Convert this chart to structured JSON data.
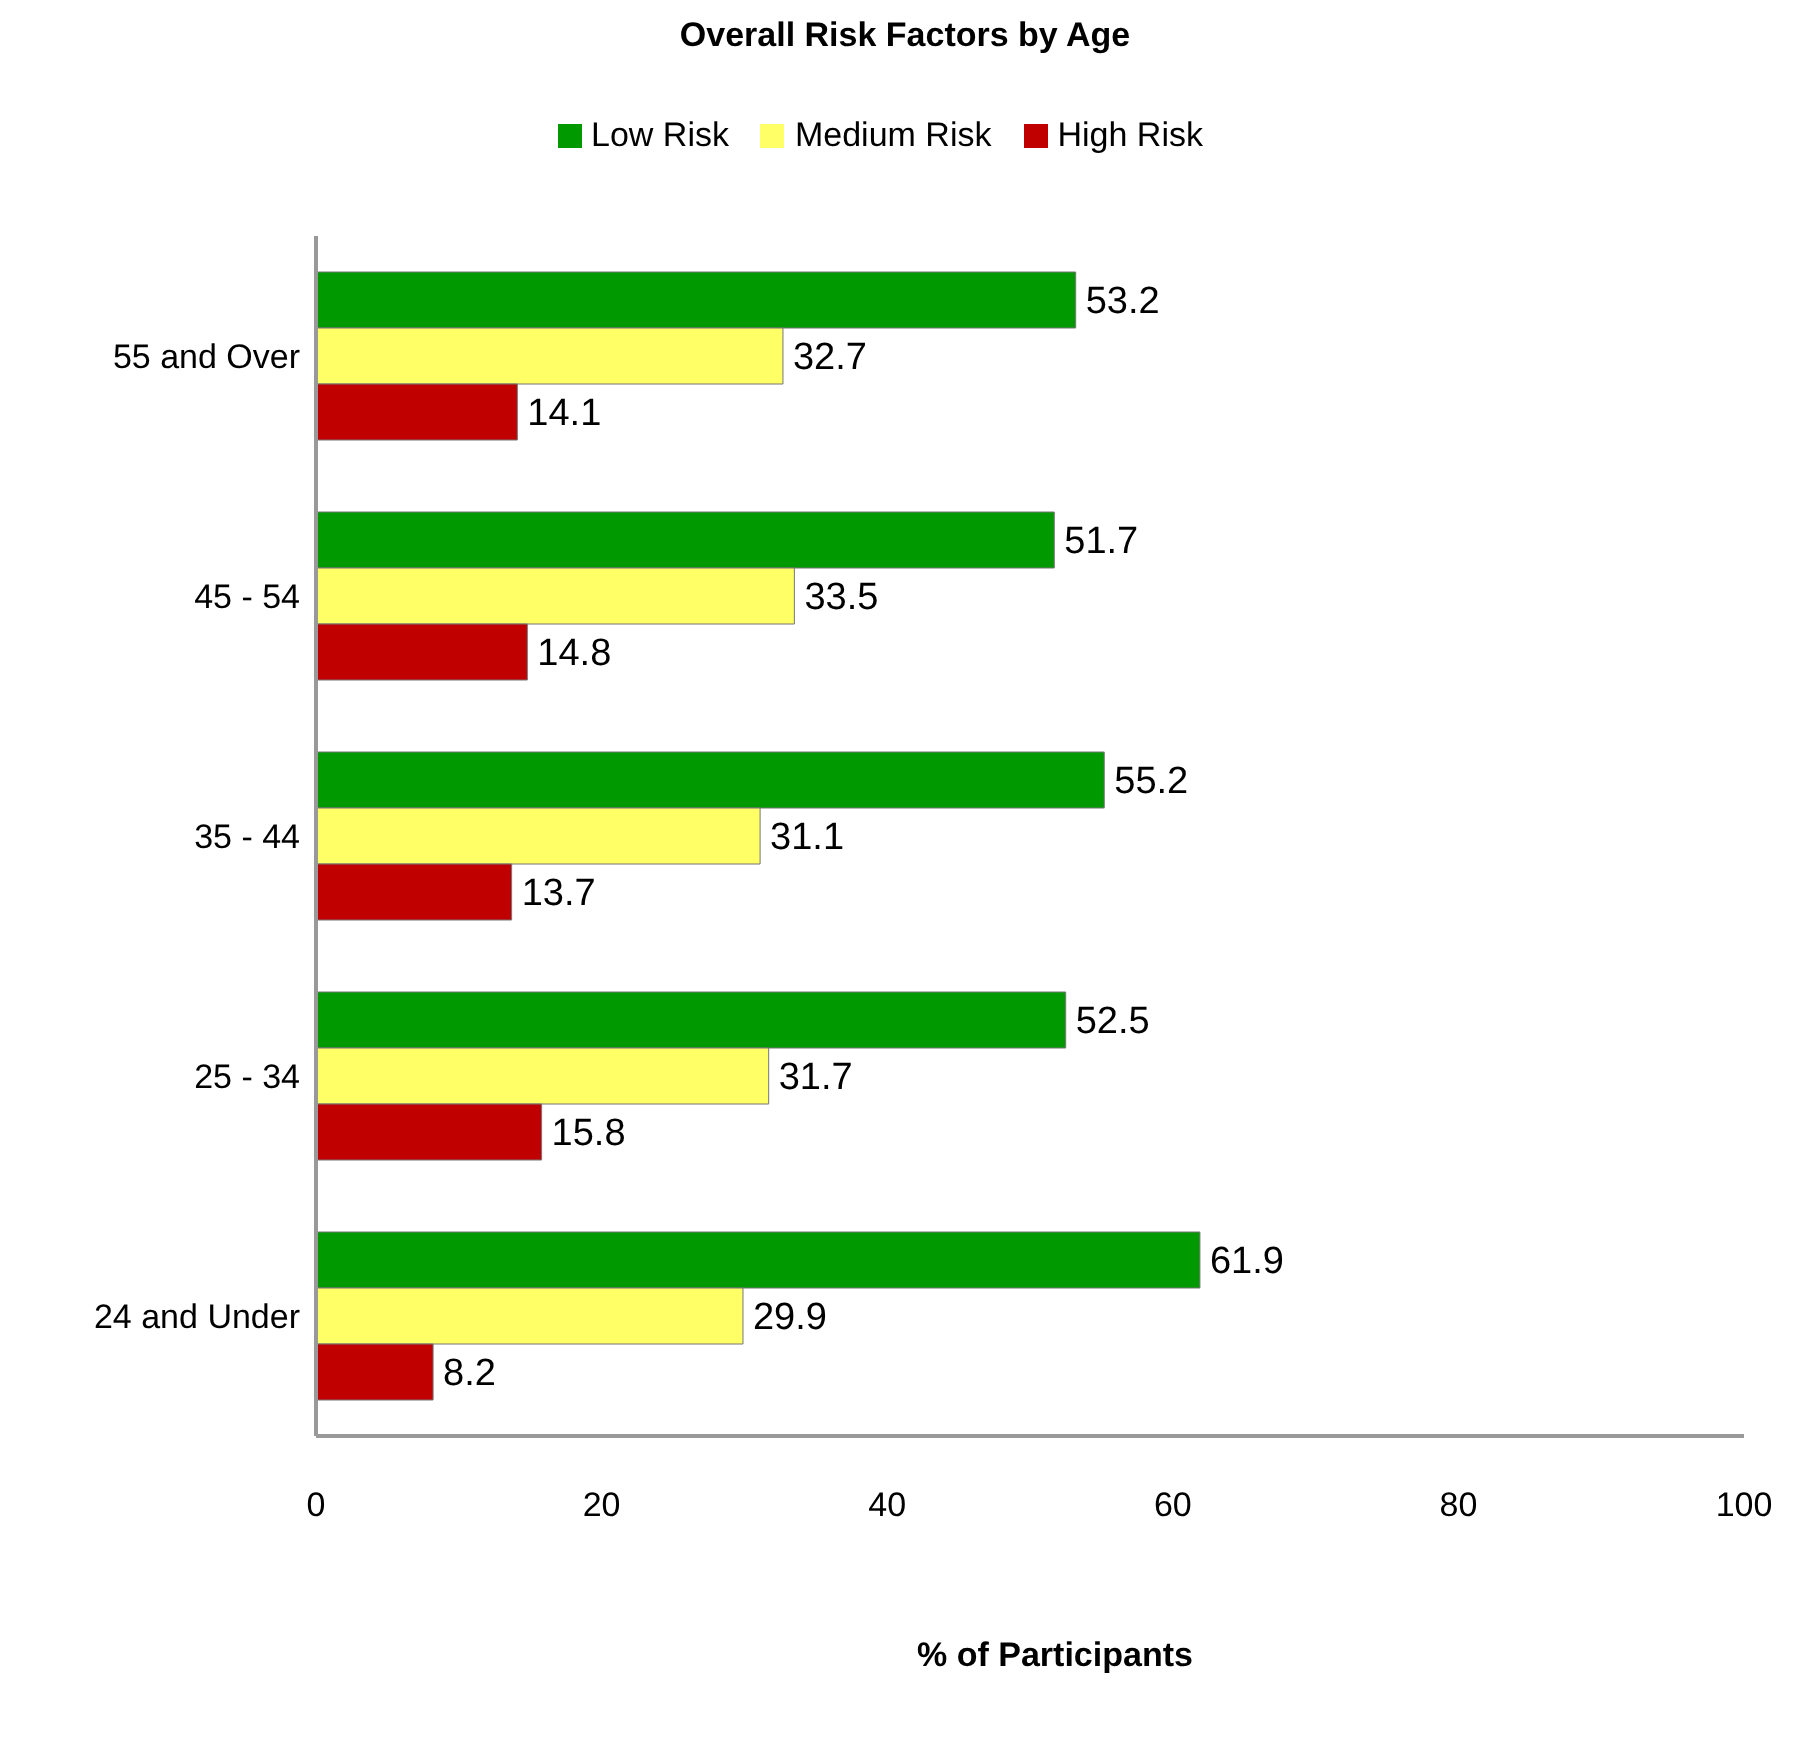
{
  "chart_data": {
    "type": "bar",
    "orientation": "horizontal",
    "title": "Overall Risk Factors by Age",
    "xlabel": "% of Participants",
    "categories": [
      "55 and Over",
      "45 - 54",
      "35 - 44",
      "25 - 34",
      "24 and Under"
    ],
    "series": [
      {
        "name": "Low Risk",
        "color": "#009900",
        "values": [
          53.2,
          51.7,
          55.2,
          52.5,
          61.9
        ]
      },
      {
        "name": "Medium Risk",
        "color": "#ffff66",
        "values": [
          32.7,
          33.5,
          31.1,
          31.7,
          29.9
        ]
      },
      {
        "name": "High Risk",
        "color": "#c00000",
        "values": [
          14.1,
          14.8,
          13.7,
          15.8,
          8.2
        ]
      }
    ],
    "xlim": [
      0,
      100
    ],
    "xticks": [
      0,
      20,
      40,
      60,
      80,
      100
    ],
    "data_labels": true,
    "legend": "top",
    "grid": false
  }
}
